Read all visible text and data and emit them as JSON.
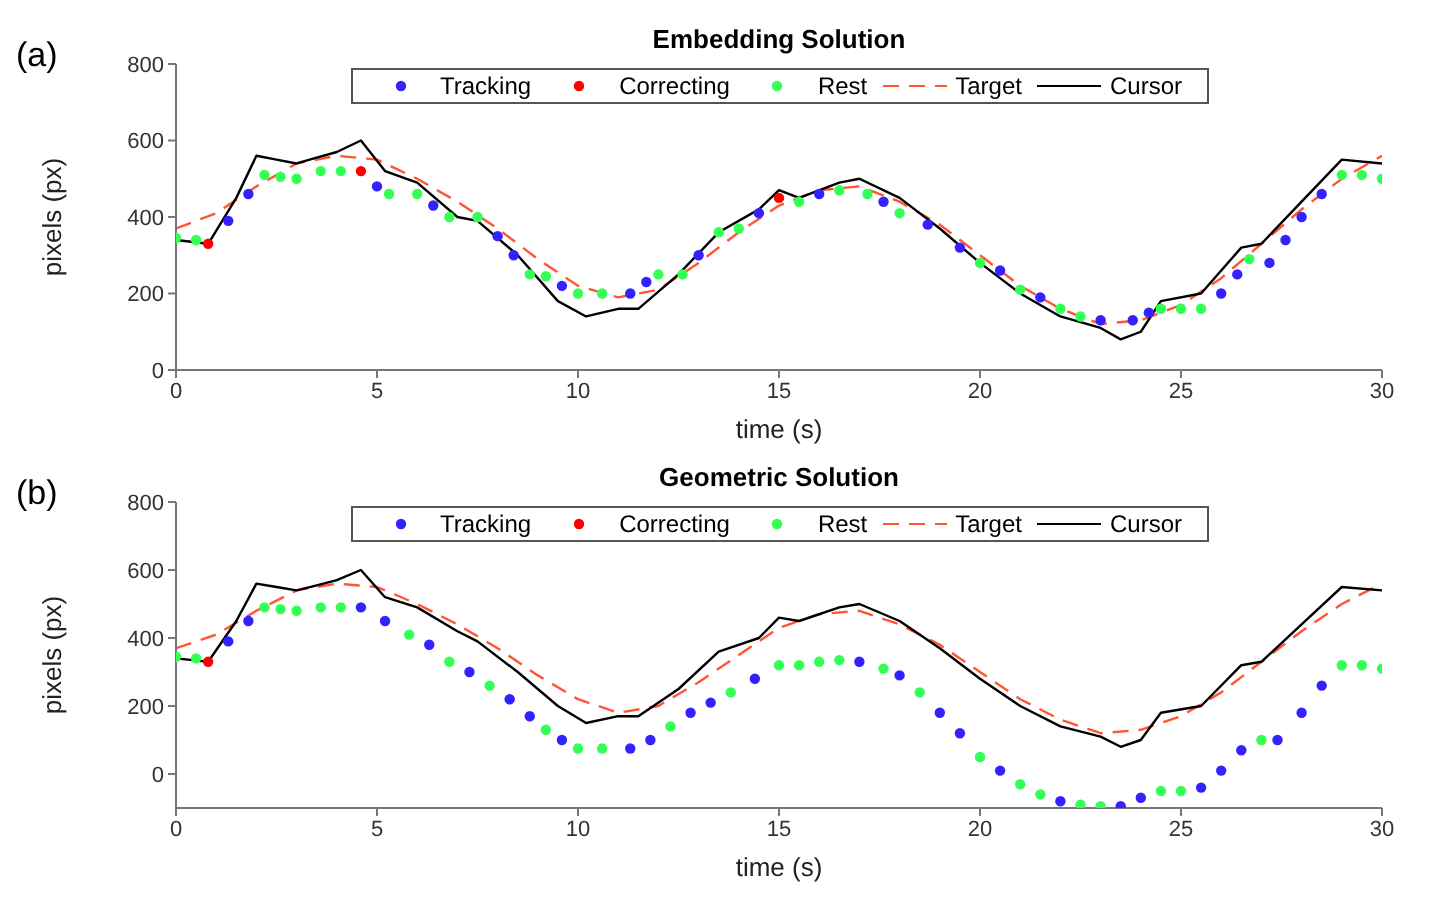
{
  "chart_data": [
    {
      "type": "line",
      "title": "Embedding Solution",
      "annotations": [
        "(a)"
      ],
      "xlabel": "time (s)",
      "ylabel": "pixels (px)",
      "xlim": [
        0,
        30
      ],
      "xticks": [
        0,
        5,
        10,
        15,
        20,
        25,
        30
      ],
      "ylim": [
        0,
        800
      ],
      "yticks": [
        0,
        200,
        400,
        600,
        800
      ],
      "legend": "top",
      "grid": false,
      "series": [
        {
          "name": "Tracking",
          "type": "scatter",
          "marker": "circle",
          "color": "#3322ff",
          "x": [
            1.3,
            1.8,
            5,
            6.4,
            8,
            8.4,
            9.6,
            11.3,
            11.7,
            13,
            14.5,
            16,
            17.6,
            18.7,
            19.5,
            20.5,
            21.5,
            23,
            23.8,
            24.2,
            26,
            26.4,
            27.2,
            27.6,
            28,
            28.5
          ],
          "values": [
            390,
            460,
            480,
            430,
            350,
            300,
            220,
            200,
            230,
            300,
            410,
            460,
            440,
            380,
            320,
            260,
            190,
            130,
            130,
            150,
            200,
            250,
            280,
            340,
            400,
            460
          ]
        },
        {
          "name": "Correcting",
          "type": "scatter",
          "marker": "circle",
          "color": "#ff0000",
          "x": [
            0.8,
            4.6,
            15
          ],
          "values": [
            330,
            520,
            450
          ]
        },
        {
          "name": "Rest",
          "type": "scatter",
          "marker": "circle",
          "color": "#33ff55",
          "x": [
            0,
            0.5,
            2.2,
            2.6,
            3,
            3.6,
            4.1,
            5.3,
            6,
            6.8,
            7.5,
            8.8,
            9.2,
            10,
            10.6,
            12,
            12.6,
            13.5,
            14,
            15.5,
            16.5,
            17.2,
            18,
            20,
            21,
            22,
            22.5,
            24.5,
            25,
            25.5,
            26.7,
            29,
            29.5,
            30
          ],
          "values": [
            345,
            340,
            510,
            505,
            500,
            520,
            520,
            460,
            460,
            400,
            400,
            250,
            245,
            200,
            200,
            250,
            250,
            360,
            370,
            440,
            470,
            460,
            410,
            280,
            210,
            160,
            140,
            160,
            160,
            160,
            290,
            510,
            510,
            500
          ]
        },
        {
          "name": "Target",
          "line_style": "dashed",
          "color": "#ff5533",
          "x": [
            0,
            1,
            2,
            3,
            4,
            5,
            6,
            7,
            8,
            9,
            10,
            11,
            12,
            13,
            14,
            15,
            16,
            17,
            18,
            19,
            20,
            21,
            22,
            23,
            24,
            25,
            26,
            27,
            28,
            29,
            30
          ],
          "values": [
            370,
            410,
            480,
            540,
            560,
            550,
            500,
            440,
            370,
            290,
            220,
            190,
            210,
            280,
            360,
            430,
            470,
            480,
            440,
            380,
            300,
            220,
            160,
            120,
            130,
            170,
            240,
            330,
            420,
            500,
            560
          ]
        },
        {
          "name": "Cursor",
          "line_style": "solid",
          "color": "#000000",
          "x": [
            0,
            0.8,
            1.5,
            2,
            2.5,
            3,
            3.5,
            4,
            4.6,
            5.2,
            6,
            7,
            7.5,
            8.5,
            9.5,
            10.2,
            11,
            11.5,
            12.5,
            13.5,
            14.5,
            15,
            15.5,
            16.5,
            17,
            18,
            19,
            20,
            21,
            22,
            23,
            23.5,
            24,
            24.5,
            25.5,
            26.5,
            27,
            28,
            29,
            30
          ],
          "values": [
            340,
            330,
            450,
            560,
            550,
            540,
            555,
            570,
            600,
            520,
            490,
            400,
            390,
            300,
            180,
            140,
            160,
            160,
            250,
            360,
            420,
            470,
            450,
            490,
            500,
            450,
            370,
            280,
            200,
            140,
            110,
            80,
            100,
            180,
            200,
            320,
            330,
            440,
            550,
            540
          ]
        }
      ]
    },
    {
      "type": "line",
      "title": "Geometric Solution",
      "annotations": [
        "(b)"
      ],
      "xlabel": "time (s)",
      "ylabel": "pixels (px)",
      "xlim": [
        0,
        30
      ],
      "xticks": [
        0,
        5,
        10,
        15,
        20,
        25,
        30
      ],
      "ylim": [
        -100,
        800
      ],
      "yticks": [
        0,
        200,
        400,
        600,
        800
      ],
      "legend": "top",
      "grid": false,
      "series": [
        {
          "name": "Tracking",
          "type": "scatter",
          "marker": "circle",
          "color": "#3322ff",
          "x": [
            1.3,
            1.8,
            4.6,
            5.2,
            6.3,
            7.3,
            8.3,
            8.8,
            9.6,
            11.3,
            11.8,
            12.8,
            13.3,
            14.4,
            17,
            18,
            19,
            19.5,
            20.5,
            22,
            23.5,
            24,
            25.5,
            26,
            26.5,
            27.4,
            28,
            28.5
          ],
          "values": [
            390,
            450,
            490,
            450,
            380,
            300,
            220,
            170,
            100,
            75,
            100,
            180,
            210,
            280,
            330,
            290,
            180,
            120,
            10,
            -80,
            -95,
            -70,
            -40,
            10,
            70,
            100,
            180,
            260
          ]
        },
        {
          "name": "Correcting",
          "type": "scatter",
          "marker": "circle",
          "color": "#ff0000",
          "x": [
            0.8
          ],
          "values": [
            330
          ]
        },
        {
          "name": "Rest",
          "type": "scatter",
          "marker": "circle",
          "color": "#33ff55",
          "x": [
            0,
            0.5,
            2.2,
            2.6,
            3,
            3.6,
            4.1,
            5.8,
            6.8,
            7.8,
            9.2,
            10,
            10.6,
            12.3,
            13.8,
            15,
            15.5,
            16,
            16.5,
            17.6,
            18.5,
            20,
            21,
            21.5,
            22.5,
            23,
            24.5,
            25,
            27,
            29,
            29.5,
            30
          ],
          "values": [
            345,
            340,
            490,
            485,
            480,
            490,
            490,
            410,
            330,
            260,
            130,
            75,
            75,
            140,
            240,
            320,
            320,
            330,
            335,
            310,
            240,
            50,
            -30,
            -60,
            -90,
            -95,
            -50,
            -50,
            100,
            320,
            320,
            310
          ]
        },
        {
          "name": "Target",
          "line_style": "dashed",
          "color": "#ff5533",
          "x": [
            0,
            1,
            2,
            3,
            4,
            5,
            6,
            7,
            8,
            9,
            10,
            11,
            12,
            13,
            14,
            15,
            16,
            17,
            18,
            19,
            20,
            21,
            22,
            23,
            24,
            25,
            26,
            27,
            28,
            29,
            30
          ],
          "values": [
            370,
            410,
            480,
            540,
            560,
            550,
            500,
            440,
            370,
            290,
            220,
            180,
            200,
            270,
            350,
            430,
            470,
            480,
            440,
            380,
            300,
            220,
            160,
            120,
            130,
            170,
            240,
            330,
            420,
            500,
            560
          ]
        },
        {
          "name": "Cursor",
          "line_style": "solid",
          "color": "#000000",
          "x": [
            0,
            0.8,
            1.5,
            2,
            2.5,
            3,
            3.5,
            4,
            4.6,
            5.2,
            6,
            7,
            7.5,
            8.5,
            9.5,
            10.2,
            11,
            11.5,
            12.5,
            13.5,
            14.5,
            15,
            15.5,
            16.5,
            17,
            18,
            19,
            20,
            21,
            22,
            23,
            23.5,
            24,
            24.5,
            25.5,
            26.5,
            27,
            28,
            29,
            30
          ],
          "values": [
            340,
            330,
            450,
            560,
            550,
            540,
            555,
            570,
            600,
            520,
            490,
            420,
            390,
            300,
            200,
            150,
            170,
            170,
            250,
            360,
            400,
            460,
            450,
            490,
            500,
            450,
            370,
            280,
            200,
            140,
            110,
            80,
            100,
            180,
            200,
            320,
            330,
            440,
            550,
            540
          ]
        }
      ]
    }
  ]
}
